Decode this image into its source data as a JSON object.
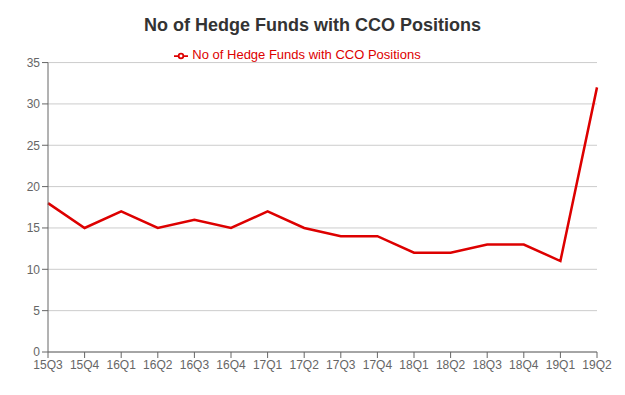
{
  "chart_data": {
    "type": "line",
    "title": "No of Hedge Funds with CCO Positions",
    "categories": [
      "15Q3",
      "15Q4",
      "16Q1",
      "16Q2",
      "16Q3",
      "16Q4",
      "17Q1",
      "17Q2",
      "17Q3",
      "17Q4",
      "18Q1",
      "18Q2",
      "18Q3",
      "18Q4",
      "19Q1",
      "19Q2"
    ],
    "series": [
      {
        "name": "No of Hedge Funds with CCO Positions",
        "color": "#dd0000",
        "values": [
          18,
          15,
          17,
          15,
          16,
          15,
          17,
          15,
          14,
          14,
          12,
          12,
          13,
          13,
          11,
          32
        ]
      }
    ],
    "ylim": [
      0,
      35
    ],
    "yticks": [
      0,
      5,
      10,
      15,
      20,
      25,
      30,
      35
    ],
    "grid": true,
    "legend": "top"
  }
}
